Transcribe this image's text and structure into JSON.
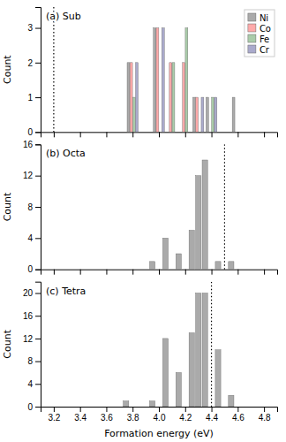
{
  "chart_data": [
    {
      "type": "bar",
      "title": "(a) Sub",
      "ylabel": "Count",
      "series": [
        {
          "name": "Ni",
          "color": "#aaaaaa",
          "x": [
            3.8,
            4.0,
            4.2,
            4.3,
            4.4,
            4.6
          ],
          "values": [
            2,
            3,
            0,
            1,
            1,
            1
          ]
        },
        {
          "name": "Co",
          "color": "#ffaaaa",
          "x": [
            3.8,
            4.0,
            4.1,
            4.2,
            4.3
          ],
          "values": [
            2,
            3,
            2,
            2,
            1
          ]
        },
        {
          "name": "Fe",
          "color": "#aaccaa",
          "x": [
            3.8,
            4.1,
            4.2,
            4.4
          ],
          "values": [
            1,
            2,
            3,
            1
          ]
        },
        {
          "name": "Cr",
          "color": "#aaaacc",
          "x": [
            3.8,
            4.0,
            4.3,
            4.4
          ],
          "values": [
            2,
            3,
            1,
            1
          ]
        }
      ],
      "vline": 3.2,
      "xlim": [
        3.1,
        4.9
      ],
      "xticks": [
        3.2,
        3.4,
        3.6,
        3.8,
        4.0,
        4.2,
        4.4,
        4.6,
        4.8
      ],
      "ylim": [
        0,
        3.6
      ],
      "yticks": [
        0,
        1,
        2,
        3
      ],
      "legend": "top-right",
      "tick_labels": "y"
    },
    {
      "type": "bar",
      "title": "(b) Octa",
      "ylabel": "Count",
      "x": [
        3.75,
        3.85,
        3.95,
        4.05,
        4.15,
        4.25,
        4.3,
        4.35,
        4.45,
        4.55
      ],
      "values": [
        0,
        0,
        1,
        4,
        2,
        5,
        12,
        14,
        1,
        1
      ],
      "color": "#aaaaaa",
      "vline": 4.5,
      "xlim": [
        3.1,
        4.9
      ],
      "xticks": [
        3.2,
        3.4,
        3.6,
        3.8,
        4.0,
        4.2,
        4.4,
        4.6,
        4.8
      ],
      "ylim": [
        0,
        16
      ],
      "yticks": [
        0,
        4,
        8,
        12,
        16
      ],
      "tick_labels": "y"
    },
    {
      "type": "bar",
      "title": "(c) Tetra",
      "ylabel": "Count",
      "xlabel": "Formation energy (eV)",
      "x": [
        3.65,
        3.75,
        3.85,
        3.95,
        4.05,
        4.15,
        4.25,
        4.3,
        4.35,
        4.45,
        4.55
      ],
      "values": [
        0,
        1,
        0,
        1,
        12,
        6,
        13,
        20,
        20,
        10,
        2
      ],
      "color": "#aaaaaa",
      "vline": 4.4,
      "xlim": [
        3.1,
        4.9
      ],
      "xticks": [
        3.2,
        3.4,
        3.6,
        3.8,
        {
          "value": 4.0,
          "label": "4.0"
        },
        4.2,
        4.4,
        4.6,
        4.8
      ],
      "ylim": [
        0,
        22
      ],
      "yticks": [
        0,
        4,
        8,
        12,
        16,
        20
      ]
    }
  ]
}
